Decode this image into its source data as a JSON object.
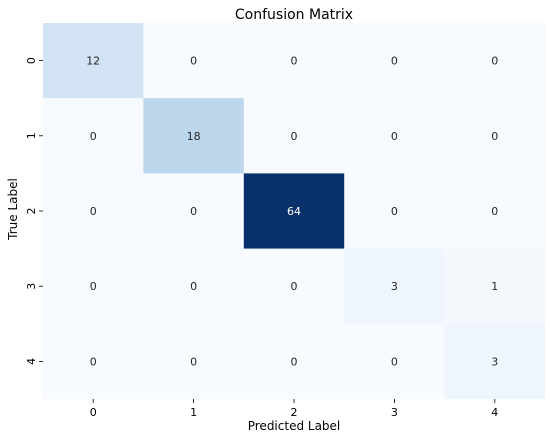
{
  "chart_data": {
    "type": "heatmap",
    "title": "Confusion Matrix",
    "xlabel": "Predicted Label",
    "ylabel": "True Label",
    "x_categories": [
      "0",
      "1",
      "2",
      "3",
      "4"
    ],
    "y_categories": [
      "0",
      "1",
      "2",
      "3",
      "4"
    ],
    "values": [
      [
        12,
        0,
        0,
        0,
        0
      ],
      [
        0,
        18,
        0,
        0,
        0
      ],
      [
        0,
        0,
        64,
        0,
        0
      ],
      [
        0,
        0,
        0,
        3,
        1
      ],
      [
        0,
        0,
        0,
        0,
        3
      ]
    ],
    "vmin": 0,
    "vmax": 64,
    "colormap": "Blues",
    "colorbar": false,
    "annotations": true
  }
}
